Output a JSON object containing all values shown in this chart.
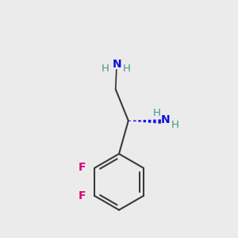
{
  "bg_color": "#ebebeb",
  "bond_color": "#3a3a3a",
  "F_color": "#e0007f",
  "H_color": "#4a9090",
  "N_color": "#1010dd",
  "bond_lw": 1.5,
  "dash_color": "#1010dd",
  "figsize": [
    3.0,
    3.0
  ],
  "dpi": 100,
  "xlim": [
    0.0,
    1.0
  ],
  "ylim": [
    -0.85,
    0.55
  ]
}
